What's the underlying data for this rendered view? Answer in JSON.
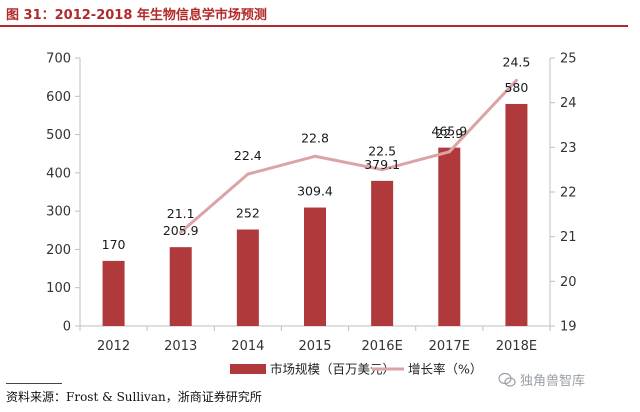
{
  "title": "图 31：2012-2018 年生物信息学市场预测",
  "source": "资料来源：Frost & Sullivan，浙商证券研究所",
  "watermark": "独角兽智库",
  "colors": {
    "bar": "#b0393b",
    "line": "#dba3a6",
    "title": "#b12a2a"
  },
  "chart_data": {
    "type": "bar",
    "categories": [
      "2012",
      "2013",
      "2014",
      "2015",
      "2016E",
      "2017E",
      "2018E"
    ],
    "series": [
      {
        "name": "市场规模（百万美元）",
        "type": "bar",
        "axis": "left",
        "values": [
          170,
          205.9,
          252,
          309.4,
          379.1,
          465.9,
          580
        ],
        "labels": [
          "170",
          "205.9",
          "252",
          "309.4",
          "379.1",
          "465.9",
          "580"
        ]
      },
      {
        "name": "增长率（%）",
        "type": "line",
        "axis": "right",
        "values": [
          null,
          21.1,
          22.4,
          22.8,
          22.5,
          22.9,
          24.5
        ],
        "labels": [
          "",
          "21.1",
          "22.4",
          "22.8",
          "22.5",
          "22.9",
          "24.5"
        ]
      }
    ],
    "y_left": {
      "min": 0,
      "max": 700,
      "ticks": [
        "0",
        "100",
        "200",
        "300",
        "400",
        "500",
        "600",
        "700"
      ]
    },
    "y_right": {
      "min": 19,
      "max": 25,
      "ticks": [
        "19",
        "20",
        "21",
        "22",
        "23",
        "24",
        "25"
      ]
    },
    "grid": false,
    "legend": "bottom"
  }
}
